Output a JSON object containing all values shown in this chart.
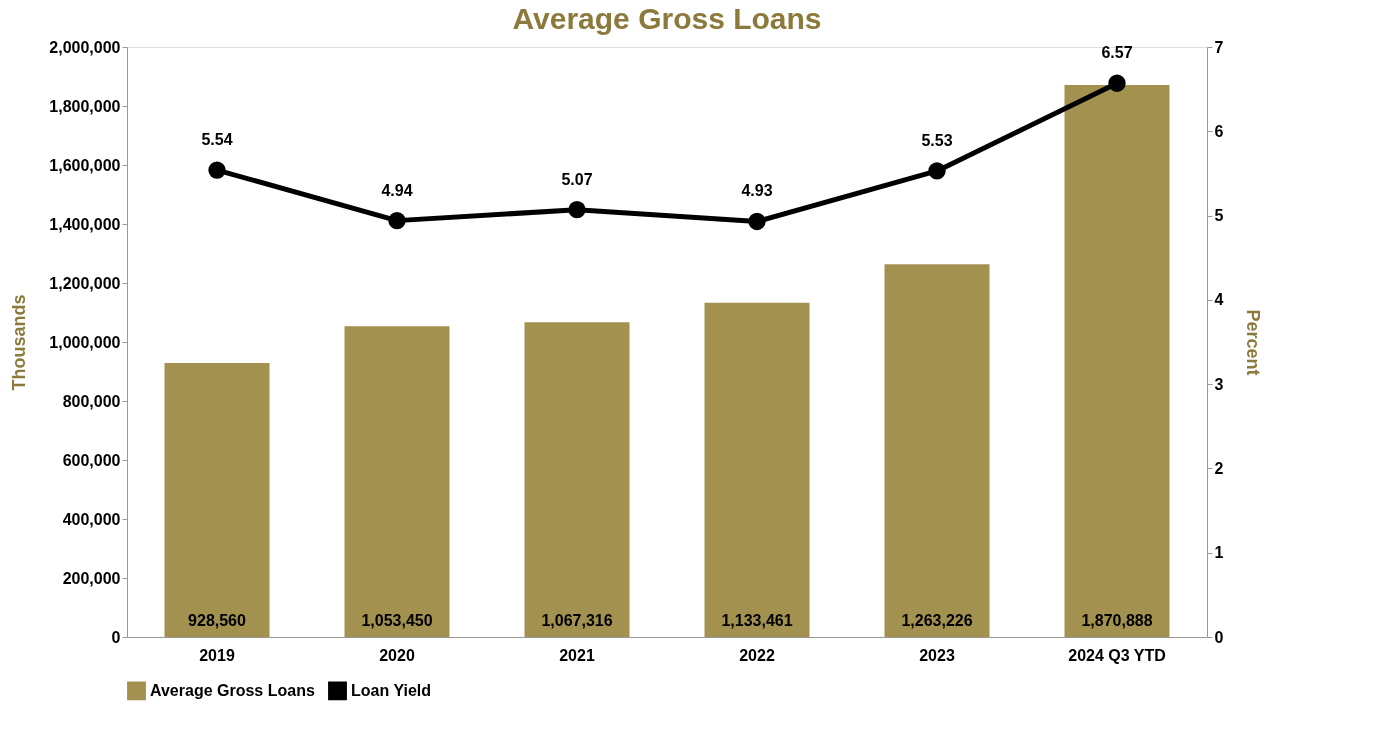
{
  "chart_data": {
    "type": "bar",
    "title": "Average Gross Loans",
    "ylabel": "Thousands",
    "y2label": "Percent",
    "categories": [
      "2019",
      "2020",
      "2021",
      "2022",
      "2023",
      "2024 Q3 YTD"
    ],
    "series": [
      {
        "name": "Average Gross Loans",
        "color": "#a39150",
        "values": [
          928560,
          1053450,
          1067316,
          1133461,
          1263226,
          1870888
        ],
        "value_labels": [
          "928,560",
          "1,053,450",
          "1,067,316",
          "1,133,461",
          "1,263,226",
          "1,870,888"
        ]
      },
      {
        "name": "Loan Yield",
        "type": "line",
        "axis": "y2",
        "marker": "circle",
        "color": "#000000",
        "values": [
          5.54,
          4.94,
          5.07,
          4.93,
          5.53,
          6.57
        ]
      }
    ],
    "ylim": [
      0,
      2000000
    ],
    "yticks": [
      0,
      {
        "value": 200000,
        "label": "200,000"
      },
      {
        "value": 400000,
        "label": "400,000"
      },
      {
        "value": 600000,
        "label": "600,000"
      },
      {
        "value": 800000,
        "label": "800,000"
      },
      {
        "value": 1000000,
        "label": "1,000,000"
      },
      {
        "value": 1200000,
        "label": "1,200,000"
      },
      {
        "value": 1400000,
        "label": "1,400,000"
      },
      {
        "value": 1600000,
        "label": "1,600,000"
      },
      {
        "value": 1800000,
        "label": "1,800,000"
      },
      {
        "value": 2000000,
        "label": "2,000,000"
      }
    ],
    "y2lim": [
      0,
      7
    ],
    "y2ticks": [
      0,
      1,
      2,
      3,
      4,
      5,
      6,
      7
    ],
    "data_labels": true,
    "legend": "bottom",
    "grid": false
  }
}
